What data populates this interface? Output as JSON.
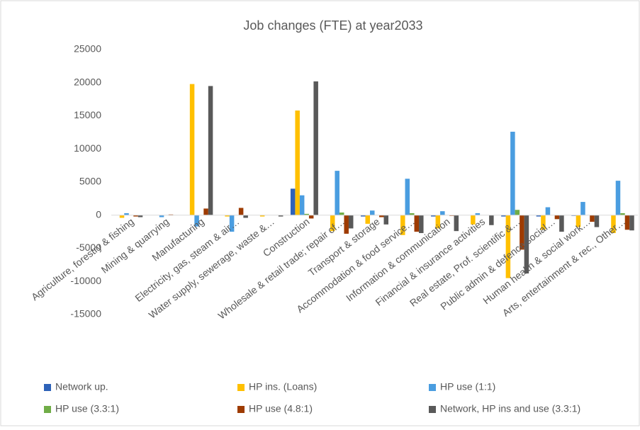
{
  "chart_data": {
    "type": "bar",
    "title": "Job changes (FTE) at year2033",
    "categories": [
      "Agriculture, forestry & fishing",
      "Mining & quarrying",
      "Manufacturing",
      "Electricity, gas, steam & air…",
      "Water supply, sewerage, waste &…",
      "Construction",
      "Wholesale & retail trade; repair of…",
      "Transport & storage",
      "Accommodation & food service…",
      "Information & communication",
      "Financial & insurance activities",
      "Real estate, Prof. scientific &…",
      "Public admin & defence social…",
      "Human health & social work…",
      "Arts, entertainment & rec., Other…"
    ],
    "series": [
      {
        "name": "Network up.",
        "color": "#2e62b8",
        "values": [
          0,
          0,
          0,
          0,
          0,
          4000,
          0,
          -200,
          0,
          -200,
          0,
          -200,
          -200,
          -100,
          0
        ]
      },
      {
        "name": "HP ins. (Loans)",
        "color": "#ffc000",
        "values": [
          -400,
          0,
          19800,
          -200,
          -200,
          15800,
          -2400,
          -1300,
          -3000,
          -2000,
          -1400,
          -9500,
          -2200,
          -1800,
          -2700
        ]
      },
      {
        "name": "HP use (1:1)",
        "color": "#4a9de0",
        "values": [
          300,
          -300,
          -1700,
          -2500,
          0,
          3000,
          6700,
          700,
          5500,
          600,
          300,
          12600,
          1200,
          2000,
          5200
        ]
      },
      {
        "name": "HP use (3.3:1)",
        "color": "#70ad47",
        "values": [
          0,
          0,
          0,
          0,
          0,
          200,
          400,
          0,
          300,
          0,
          0,
          800,
          0,
          0,
          300
        ]
      },
      {
        "name": "HP use (4.8:1)",
        "color": "#9e3b00",
        "values": [
          -200,
          100,
          1000,
          1100,
          0,
          -500,
          -2800,
          -300,
          -2500,
          -100,
          0,
          -5200,
          -600,
          -1000,
          -2200
        ]
      },
      {
        "name": "Network, HP ins and use (3.3:1)",
        "color": "#595959",
        "values": [
          -300,
          0,
          19500,
          -400,
          -200,
          20200,
          -2000,
          -1400,
          -2700,
          -2400,
          -1500,
          -8800,
          -2500,
          -1800,
          -2300
        ]
      }
    ],
    "ylim": [
      -15000,
      25000
    ],
    "yticks": [
      -15000,
      -10000,
      -5000,
      0,
      5000,
      10000,
      15000,
      20000,
      25000
    ],
    "grid": false
  }
}
